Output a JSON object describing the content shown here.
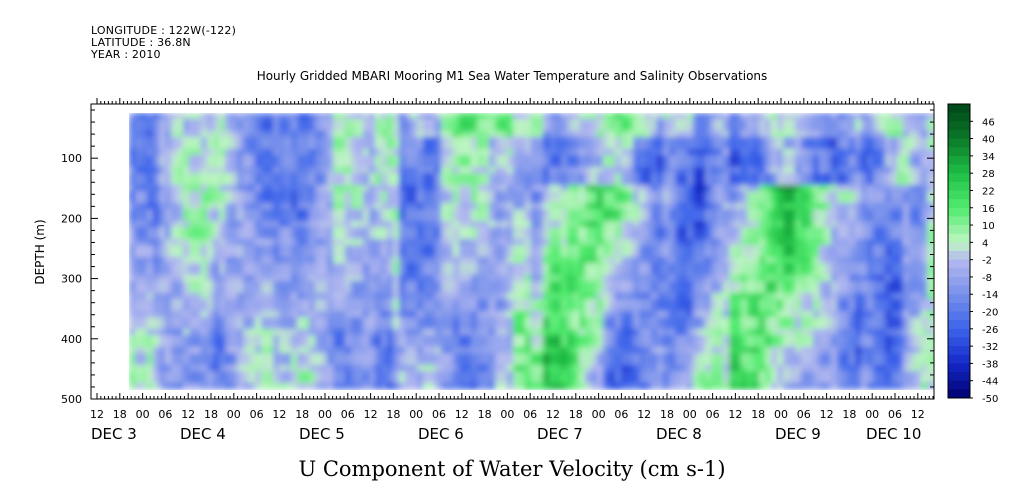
{
  "header": {
    "longitude": "LONGITUDE : 122W(-122)",
    "latitude": "LATITUDE : 36.8N",
    "year": "YEAR : 2010"
  },
  "chart_data": {
    "type": "heatmap",
    "title": "Hourly Gridded MBARI Mooring M1 Sea Water Temperature and Salinity Observations",
    "xlabel": "U Component of Water Velocity (cm s-1)",
    "ylabel": "DEPTH (m)",
    "y_ticks": [
      100,
      200,
      300,
      400,
      500
    ],
    "y_range": [
      500,
      10
    ],
    "x_hour_ticks": [
      "12",
      "18",
      "00",
      "06",
      "12",
      "18",
      "00",
      "06",
      "12",
      "18",
      "00",
      "06",
      "12",
      "18",
      "00",
      "06",
      "12",
      "18",
      "00",
      "06",
      "12",
      "18",
      "00",
      "06",
      "12",
      "18",
      "00",
      "06",
      "12",
      "18",
      "00",
      "06",
      "12",
      "18",
      "00",
      "06",
      "12"
    ],
    "x_day_labels": [
      "DEC  3",
      "DEC  4",
      "DEC  5",
      "DEC  6",
      "DEC  7",
      "DEC  8",
      "DEC  9",
      "DEC 10"
    ],
    "colorbar": {
      "labels": [
        "46",
        "40",
        "34",
        "28",
        "22",
        "16",
        "10",
        "4",
        "-2",
        "-8",
        "-14",
        "-20",
        "-26",
        "-32",
        "-38",
        "-44",
        "-50"
      ],
      "min": -50,
      "max": 52
    },
    "grid": false
  }
}
